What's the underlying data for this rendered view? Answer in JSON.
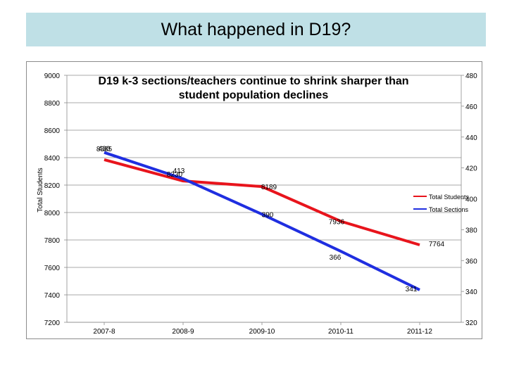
{
  "page": {
    "title": "What happened in D19?"
  },
  "chart_data": {
    "type": "line",
    "title": "D19 k-3 sections/teachers continue to shrink sharper than student population declines",
    "title_lines": [
      "D19 k-3 sections/teachers continue to shrink sharper than",
      "student population declines"
    ],
    "categories": [
      "2007-8",
      "2008-9",
      "2009-10",
      "2010-11",
      "2011-12"
    ],
    "ylabel": "Total Students",
    "ylim": [
      7200,
      9000
    ],
    "yticks": [
      "9000",
      "8800",
      "8600",
      "8400",
      "8200",
      "8000",
      "7800",
      "7600",
      "7400",
      "7200"
    ],
    "y2lim": [
      320,
      480
    ],
    "y2ticks": [
      "480",
      "460",
      "440",
      "420",
      "400",
      "380",
      "360",
      "340",
      "320"
    ],
    "grid": true,
    "legend_position": "right",
    "series": [
      {
        "name": "Total Students",
        "axis": "left",
        "color": "#e8141c",
        "values": [
          8385,
          8230,
          8189,
          7936,
          7764
        ],
        "labels": [
          "8385",
          "8230",
          "8189",
          "7936",
          "7764"
        ]
      },
      {
        "name": "Total Sections",
        "axis": "right",
        "color": "#1f2ee0",
        "values": [
          430,
          413,
          390,
          366,
          341
        ],
        "labels": [
          "430",
          "413",
          "390",
          "366",
          "341"
        ]
      }
    ]
  }
}
